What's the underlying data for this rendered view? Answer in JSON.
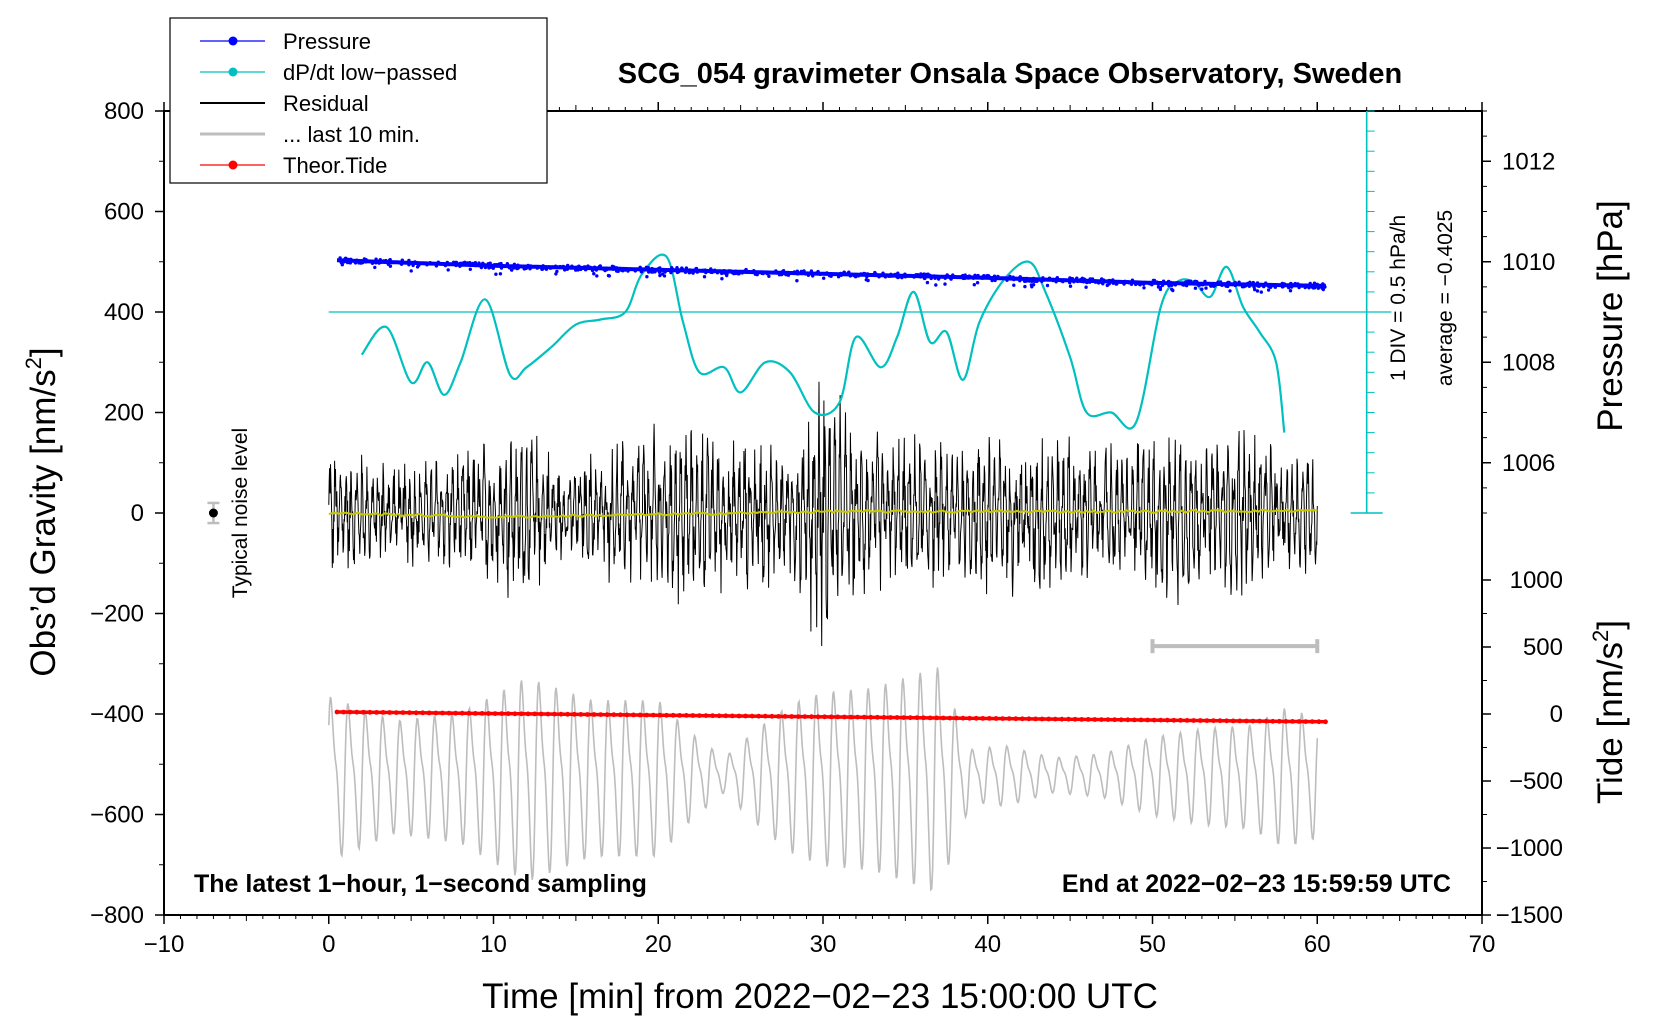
{
  "chart_data": {
    "type": "line",
    "title": "SCG_054 gravimeter Onsala Space Observatory, Sweden",
    "xlabel": "Time [min] from 2022−02−23 15:00:00 UTC",
    "ylabel": "Obs’d Gravity [nm/s²]",
    "ylabel_prefix": "Obs’d Gravity [nm/s",
    "ylabel_suffix": "]",
    "ylabel_right_top": "Pressure [hPa]",
    "ylabel_right_bottom_prefix": "Tide [nm/s",
    "ylabel_right_bottom_suffix": "]",
    "unit_exponent": "2",
    "xlim": [
      -10,
      70
    ],
    "ylim": [
      -800,
      800
    ],
    "x_ticks": [
      -10,
      0,
      10,
      20,
      30,
      40,
      50,
      60,
      70
    ],
    "x_tick_labels": [
      "−10",
      "0",
      "10",
      "20",
      "30",
      "40",
      "50",
      "60",
      "70"
    ],
    "y_ticks": [
      -800,
      -600,
      -400,
      -200,
      0,
      200,
      400,
      600,
      800
    ],
    "y_tick_labels": [
      "−800",
      "−600",
      "−400",
      "−200",
      "0",
      "200",
      "400",
      "600",
      "800"
    ],
    "pressure_axis": {
      "ticks": [
        1006,
        1008,
        1010,
        1012
      ],
      "tick_labels": [
        "1006",
        "1008",
        "1010",
        "1012"
      ],
      "map": {
        "hpa_at_y400": 1009,
        "hpa_per_nms2_200": 2
      }
    },
    "tide_axis": {
      "ticks": [
        -1500,
        -1000,
        -500,
        0,
        500,
        1000
      ],
      "tick_labels": [
        "−1500",
        "−1000",
        "−500",
        "0",
        "500",
        "1000"
      ],
      "map": {
        "tide_at_y_minus400": 0,
        "nms2_per_tide": 0.2667
      }
    },
    "legend": [
      {
        "label": "Pressure",
        "color": "#0000ff",
        "style": "line-dot"
      },
      {
        "label": "dP/dt low−passed",
        "color": "#00c0c0",
        "style": "line-dot"
      },
      {
        "label": "Residual",
        "color": "#000000",
        "style": "line"
      },
      {
        "label": "... last 10 min.",
        "color": "#bdbdbd",
        "style": "line"
      },
      {
        "label": "Theor.Tide",
        "color": "#ff0000",
        "style": "line-dot"
      }
    ],
    "dpdt_scale": {
      "label1": "1 DIV = 0.5 hPa/h",
      "label2": "average = −0.4025",
      "x": 63,
      "baseline_y": 400,
      "range_y": [
        0,
        800
      ]
    },
    "noise_label": "Typical noise level",
    "noise_marker": {
      "x": -7,
      "y": 0,
      "err": 20
    },
    "last10_bar": {
      "x_start": 50,
      "x_end": 60,
      "y": -265
    },
    "annotation_left": "The latest 1−hour, 1−second sampling",
    "annotation_right": "End at 2022−02−23 15:59:59 UTC",
    "series": [
      {
        "name": "Pressure",
        "color": "#0000ff",
        "unit": "hPa",
        "x": [
          0.5,
          10,
          20,
          30,
          40,
          50,
          60.5
        ],
        "values": [
          1010.03,
          1009.92,
          1009.84,
          1009.76,
          1009.68,
          1009.58,
          1009.52
        ]
      },
      {
        "name": "dP/dt low−passed",
        "color": "#00c0c0",
        "unit": "nm/s² (plot units)",
        "x": [
          2,
          3.5,
          5,
          6,
          7,
          8,
          9.5,
          11,
          12,
          13.5,
          15,
          16.5,
          18,
          19,
          20.5,
          21.5,
          22.5,
          24,
          25,
          26.5,
          28,
          29.5,
          31,
          32,
          33.5,
          34.5,
          35.5,
          36.5,
          37.5,
          38.5,
          39.5,
          41,
          42.5,
          43.5,
          45,
          46,
          47.5,
          49,
          50.5,
          51.5,
          52.5,
          53.5,
          54.5,
          55.5,
          56.5,
          57.5,
          58
        ],
        "values": [
          315,
          370,
          260,
          300,
          235,
          300,
          425,
          275,
          290,
          330,
          375,
          385,
          400,
          475,
          510,
          380,
          280,
          290,
          240,
          300,
          280,
          200,
          220,
          350,
          290,
          350,
          440,
          340,
          360,
          265,
          380,
          465,
          500,
          440,
          310,
          200,
          200,
          180,
          410,
          460,
          460,
          430,
          490,
          410,
          360,
          300,
          160
        ]
      },
      {
        "name": "Residual",
        "color": "#000000",
        "unit": "nm/s²",
        "x_range": [
          0,
          60
        ],
        "envelope_x": [
          0,
          4,
          8,
          12,
          14,
          18,
          20,
          22,
          24,
          26,
          28,
          30,
          32,
          34,
          36,
          38,
          40,
          42,
          44,
          46,
          48,
          50,
          52,
          54,
          56,
          58,
          60
        ],
        "envelope_amp": [
          160,
          130,
          140,
          230,
          120,
          170,
          200,
          220,
          170,
          190,
          170,
          310,
          200,
          170,
          180,
          160,
          200,
          190,
          190,
          175,
          165,
          200,
          210,
          180,
          210,
          140,
          150
        ]
      },
      {
        "name": "Residual mean",
        "color": "#c8c800",
        "unit": "nm/s²",
        "x": [
          0,
          10,
          20,
          30,
          40,
          50,
          60
        ],
        "values": [
          0,
          -8,
          -3,
          3,
          3,
          3,
          5
        ]
      },
      {
        "name": "... last 10 min.",
        "color": "#bdbdbd",
        "unit": "nm/s² (plot units)",
        "x_range": [
          0,
          60
        ],
        "center": -520,
        "envelope_x": [
          0,
          4,
          8,
          12,
          16,
          20,
          22,
          24,
          26,
          28,
          30,
          33,
          37,
          39,
          41,
          44,
          47,
          50,
          53,
          56,
          58,
          60
        ],
        "envelope_amp": [
          190,
          130,
          150,
          235,
          180,
          180,
          100,
          40,
          110,
          170,
          200,
          210,
          260,
          60,
          70,
          40,
          50,
          90,
          110,
          120,
          160,
          140
        ]
      },
      {
        "name": "Theor.Tide",
        "color": "#ff0000",
        "unit": "nm/s²",
        "x": [
          0.5,
          60.5
        ],
        "values": [
          15,
          -58
        ]
      }
    ]
  }
}
